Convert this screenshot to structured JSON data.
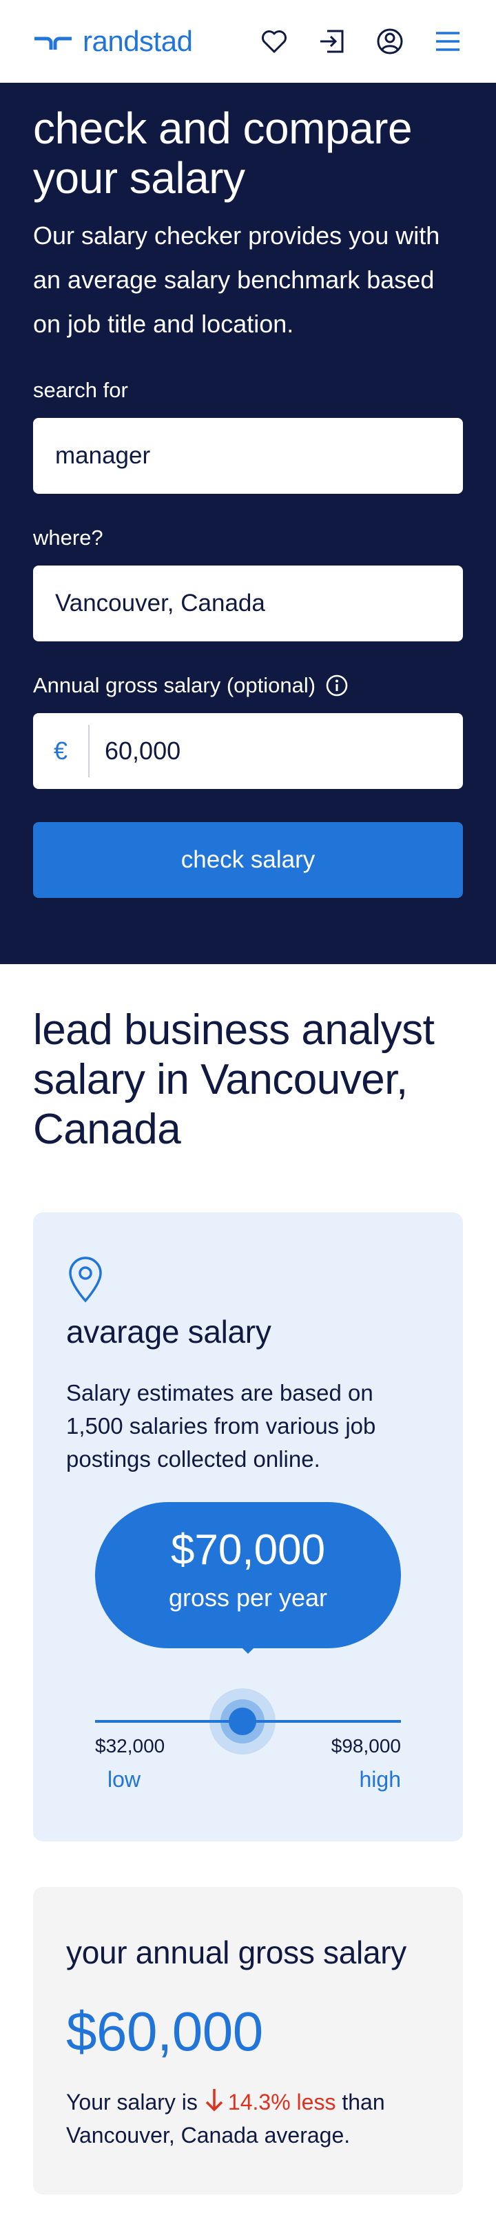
{
  "header": {
    "logo_text": "randstad",
    "icons": [
      "heart-icon",
      "login-icon",
      "user-icon",
      "menu-icon"
    ]
  },
  "hero": {
    "title": "check and compare your salary",
    "intro": "Our salary checker provides you with an average salary benchmark based on job title and location.",
    "search_label": "search for",
    "search_value": "manager",
    "where_label": "where?",
    "where_value": "Vancouver, Canada",
    "salary_label": "Annual gross salary (optional)",
    "currency_symbol": "€",
    "salary_value": "60,000",
    "button_label": "check salary"
  },
  "results": {
    "title": "lead business analyst salary in Vancouver, Canada",
    "average": {
      "title": "avarage salary",
      "description": "Salary estimates are based on 1,500 salaries from various job postings collected online.",
      "amount": "$70,000",
      "amount_sub": "gross per year",
      "min": "$32,000",
      "max": "$98,000",
      "low_label": "low",
      "high_label": "high",
      "position_fraction": 0.576
    },
    "yours": {
      "title": "your annual gross salary",
      "amount": "$60,000",
      "compare_prefix": "Your salary is",
      "compare_diff": "14.3% less",
      "compare_suffix": "than Vancouver, Canada average."
    }
  },
  "colors": {
    "navy": "#0f1941",
    "brand_blue": "#2175d9",
    "light_blue_card": "#e8f1fb",
    "grey_card": "#f4f4f5",
    "negative_red": "#e0301e"
  }
}
